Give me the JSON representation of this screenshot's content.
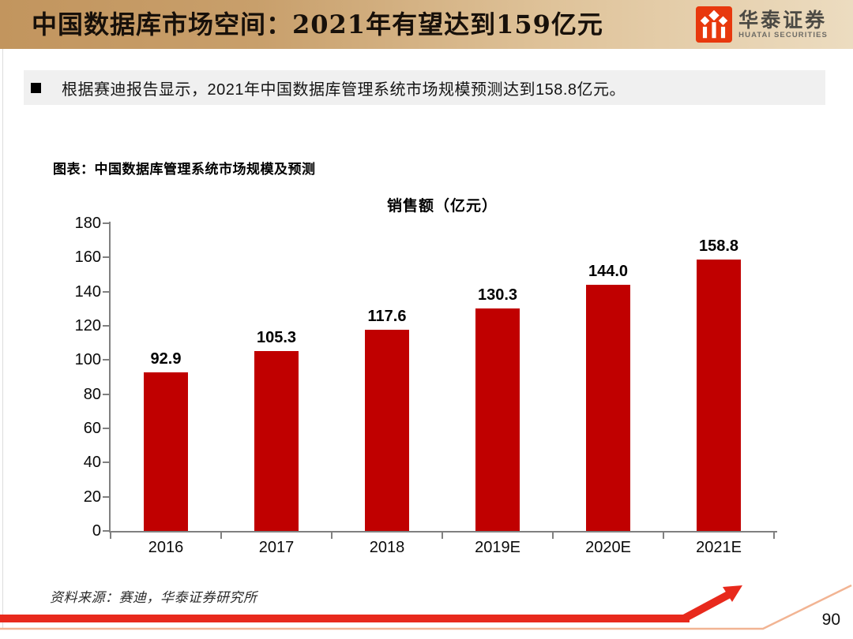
{
  "header": {
    "title": "中国数据库市场空间：2021年有望达到159亿元",
    "logo_cn": "华泰证券",
    "logo_en": "HUATAI SECURITIES"
  },
  "summary": {
    "text": "根据赛迪报告显示，2021年中国数据库管理系统市场规模预测达到158.8亿元。"
  },
  "figure_caption": "图表：中国数据库管理系统市场规模及预测",
  "chart_data": {
    "type": "bar",
    "title": "销售额（亿元）",
    "categories": [
      "2016",
      "2017",
      "2018",
      "2019E",
      "2020E",
      "2021E"
    ],
    "values": [
      92.9,
      105.3,
      117.6,
      130.3,
      144.0,
      158.8
    ],
    "value_labels": [
      "92.9",
      "105.3",
      "117.6",
      "130.3",
      "144.0",
      "158.8"
    ],
    "xlabel": "",
    "ylabel": "",
    "ylim": [
      0,
      180
    ],
    "ytick_step": 20,
    "bar_color": "#c00000",
    "grid": false,
    "legend": "none",
    "value_labels_shown": true
  },
  "footer": {
    "source": "资料来源：赛迪，华泰证券研究所",
    "page_number": "90"
  },
  "colors": {
    "header_gradient_left": "#c2955e",
    "header_gradient_right": "#ecdcc0",
    "logo_red": "#e8380d",
    "bar_red": "#c00000",
    "axis_gray": "#808080",
    "bullet_box_bg": "#f0f0f0",
    "bullet_square": "#000000",
    "deco_red": "#e8291c",
    "deco_salmon": "#f2b493"
  }
}
